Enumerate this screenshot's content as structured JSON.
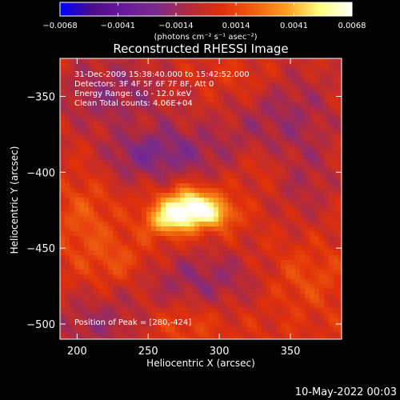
{
  "chart_data": {
    "type": "heatmap",
    "title": "Reconstructed RHESSI Image",
    "xlabel": "Heliocentric X (arcsec)",
    "ylabel": "Heliocentric Y (arcsec)",
    "xlim": [
      188,
      386
    ],
    "ylim": [
      -510,
      -325
    ],
    "x_ticks": [
      200,
      250,
      300,
      350
    ],
    "y_ticks": [
      -350,
      -400,
      -450,
      -500
    ],
    "colorbar": {
      "range": [
        -0.0068,
        0.0068
      ],
      "tick_labels": [
        "-0.0068",
        "-0.0041",
        "-0.0014",
        "0.0014",
        "0.0041",
        "0.0068"
      ],
      "unit_label": "(photons cm⁻² s⁻¹ asec⁻²)",
      "colors": [
        "#0000ff",
        "#4a0d8a",
        "#6a1a9c",
        "#7a2c8a",
        "#b42a3a",
        "#e0300a",
        "#f06010",
        "#ffa020",
        "#ffff80",
        "#ffffff"
      ]
    },
    "info_lines": [
      "31-Dec-2009 15:38:40.000 to 15:42:52.000",
      "Detectors: 3F 4F 5F 6F 7F 8F, Att 0",
      "Energy Range: 6.0 - 12.0 keV",
      "Clean    Total counts: 4.06E+04"
    ],
    "peak_label": "Position of Peak = [280,-424]",
    "peak": [
      280,
      -424
    ],
    "sources": [
      {
        "x": 280,
        "y": -424,
        "sx": 14,
        "sy": 9,
        "amp": 0.0068
      },
      {
        "x": 262,
        "y": -432,
        "sx": 10,
        "sy": 7,
        "amp": 0.003
      },
      {
        "x": 300,
        "y": -428,
        "sx": 9,
        "sy": 6,
        "amp": 0.002
      },
      {
        "x": 255,
        "y": -388,
        "sx": 40,
        "sy": 14,
        "amp": -0.0025
      },
      {
        "x": 225,
        "y": -350,
        "sx": 30,
        "sy": 22,
        "amp": -0.002
      },
      {
        "x": 345,
        "y": -360,
        "sx": 30,
        "sy": 25,
        "amp": -0.0018
      },
      {
        "x": 290,
        "y": -470,
        "sx": 40,
        "sy": 14,
        "amp": -0.002
      },
      {
        "x": 360,
        "y": -410,
        "sx": 18,
        "sy": 20,
        "amp": -0.0012
      },
      {
        "x": 215,
        "y": -500,
        "sx": 28,
        "sy": 14,
        "amp": -0.0018
      },
      {
        "x": 205,
        "y": -430,
        "sx": 14,
        "sy": 18,
        "amp": 0.0012
      },
      {
        "x": 230,
        "y": -460,
        "sx": 18,
        "sy": 12,
        "amp": 0.0014
      },
      {
        "x": 355,
        "y": -470,
        "sx": 22,
        "sy": 14,
        "amp": 0.0014
      },
      {
        "x": 330,
        "y": -395,
        "sx": 15,
        "sy": 10,
        "amp": 0.001
      },
      {
        "x": 320,
        "y": -340,
        "sx": 18,
        "sy": 10,
        "amp": 0.001
      },
      {
        "x": 210,
        "y": -385,
        "sx": 14,
        "sy": 14,
        "amp": 0.0012
      },
      {
        "x": 240,
        "y": -370,
        "sx": 12,
        "sy": 8,
        "amp": 0.0009
      },
      {
        "x": 270,
        "y": -500,
        "sx": 20,
        "sy": 10,
        "amp": 0.001
      }
    ]
  },
  "footer": {
    "timestamp": "10-May-2022 00:03"
  }
}
